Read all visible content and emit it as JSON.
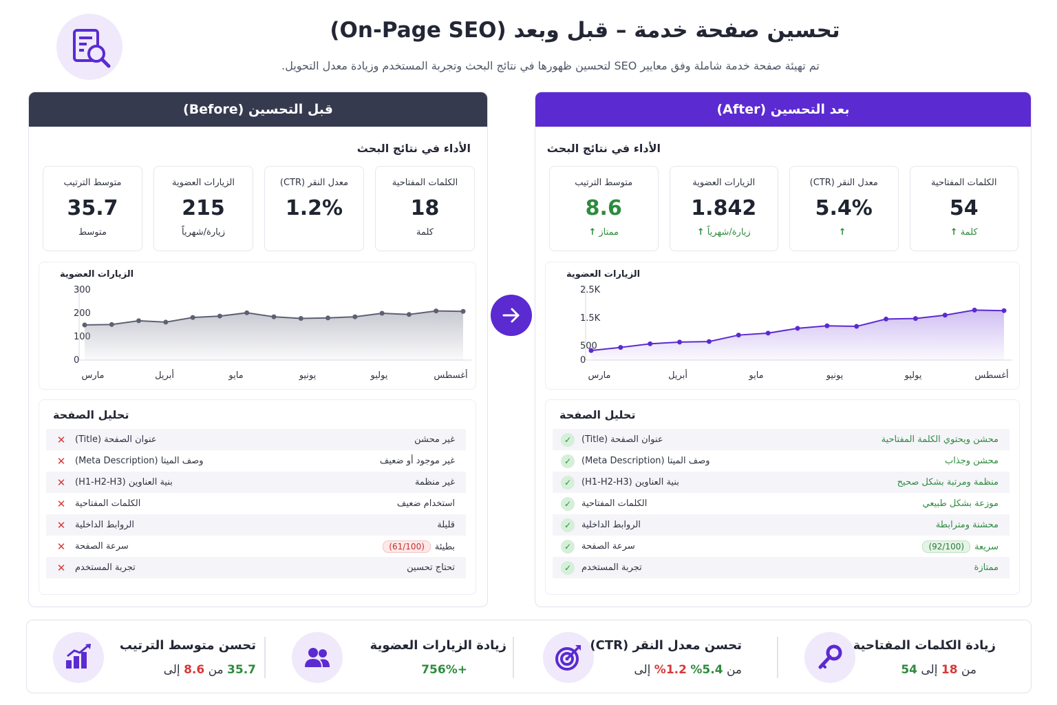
{
  "header": {
    "title": "تحسين صفحة خدمة – قبل وبعد (On-Page SEO)",
    "subtitle": "تم تهيئة صفحة خدمة شاملة وفق معايير SEO لتحسين ظهورها في نتائج البحث وتجربة المستخدم وزيادة معدل التحويل."
  },
  "before": {
    "title": "قبل التحسين (Before)",
    "section_title": "الأداء في نتائج البحث",
    "cards": [
      {
        "label": "الكلمات المفتاحية",
        "value": "18",
        "unit": "كلمة"
      },
      {
        "label": "معدل النقر (CTR)",
        "value": "1.2%",
        "unit": ""
      },
      {
        "label": "الزيارات العضوية",
        "value": "215",
        "unit": "زيارة/شهرياً"
      },
      {
        "label": "متوسط الترتيب",
        "value": "35.7",
        "unit": "متوسط"
      }
    ],
    "analysis_title": "تحليل الصفحة",
    "analysis": [
      {
        "name": "عنوان الصفحة (Title)",
        "value": "غير محشن",
        "pill": ""
      },
      {
        "name": "وصف الميتا (Meta Description)",
        "value": "غير موجود أو ضعيف",
        "pill": ""
      },
      {
        "name": "بنية العناوين (H1-H2-H3)",
        "value": "غير منظمة",
        "pill": ""
      },
      {
        "name": "الكلمات المفتاحية",
        "value": "استخدام ضعيف",
        "pill": ""
      },
      {
        "name": "الروابط الداخلية",
        "value": "قليلة",
        "pill": ""
      },
      {
        "name": "سرعة الصفحة",
        "value": "بطيئة",
        "pill": "(61/100)"
      },
      {
        "name": "تجربة المستخدم",
        "value": "تحتاج تحسين",
        "pill": ""
      }
    ],
    "status_icon": "✕"
  },
  "after": {
    "title": "بعد التحسين (After)",
    "section_title": "الأداء في نتائج البحث",
    "cards": [
      {
        "label": "الكلمات المفتاحية",
        "value": "54",
        "unit": "كلمة",
        "arrow": "↑"
      },
      {
        "label": "معدل النقر (CTR)",
        "value": "5.4%",
        "unit": "",
        "arrow": "↑"
      },
      {
        "label": "الزيارات العضوية",
        "value": "1.842",
        "unit": "زيارة/شهرياً",
        "arrow": "↑"
      },
      {
        "label": "متوسط الترتيب",
        "value": "8.6",
        "unit": "ممتاز",
        "arrow": "↑"
      }
    ],
    "analysis_title": "تحليل الصفحة",
    "analysis": [
      {
        "name": "عنوان الصفحة (Title)",
        "value": "محشن ويحتوي الكلمة المفتاحية",
        "pill": ""
      },
      {
        "name": "وصف الميتا (Meta Description)",
        "value": "محشن وجذاب",
        "pill": ""
      },
      {
        "name": "بنية العناوين (H1-H2-H3)",
        "value": "منظمة ومرتبة بشكل صحيح",
        "pill": ""
      },
      {
        "name": "الكلمات المفتاحية",
        "value": "موزعة بشكل طبيعي",
        "pill": ""
      },
      {
        "name": "الروابط الداخلية",
        "value": "محشنة ومترابطة",
        "pill": ""
      },
      {
        "name": "سرعة الصفحة",
        "value": "سريعة",
        "pill": "(92/100)"
      },
      {
        "name": "تجربة المستخدم",
        "value": "ممتازة",
        "pill": ""
      }
    ],
    "status_icon": "✓"
  },
  "summary": [
    {
      "title": "زيادة الكلمات المفتاحية",
      "pre": "من",
      "from": "18",
      "mid": "إلى",
      "to": "54",
      "icon": "key-icon"
    },
    {
      "title": "تحسن معدل النقر (CTR)",
      "pre": "من",
      "from": "1.2%",
      "mid": "إلى",
      "to": "5.4%",
      "icon": "target-icon"
    },
    {
      "title": "زيادة الزيارات العضوية",
      "pre": "",
      "from": "",
      "mid": "",
      "to": "+756%",
      "icon": "users-icon"
    },
    {
      "title": "تحسن متوسط الترتيب",
      "pre": "من",
      "from": "35.7",
      "mid": "إلى",
      "to": "8.6",
      "icon": "bar-chart-icon"
    }
  ],
  "colors": {
    "before_head": "#363a4f",
    "after_accent": "#5b2ad1",
    "good": "#2e8b3e",
    "bad": "#d93838"
  },
  "chart_data": [
    {
      "type": "area",
      "title": "الزيارات العضوية",
      "x_tick_labels": [
        "مارس",
        "أبريل",
        "مايو",
        "يونيو",
        "يوليو",
        "أغسطس"
      ],
      "y_ticks": [
        "0",
        "100",
        "200",
        "300"
      ],
      "ylim": [
        0,
        300
      ],
      "values": [
        150,
        152,
        168,
        162,
        182,
        188,
        202,
        185,
        178,
        180,
        185,
        200,
        195,
        210,
        208
      ],
      "grid": false
    },
    {
      "type": "area",
      "title": "الزيارات العضوية",
      "x_tick_labels": [
        "مارس",
        "أبريل",
        "مايو",
        "يونيو",
        "يوليو",
        "أغسطس"
      ],
      "y_ticks": [
        "0",
        "500",
        "1.5K",
        "2.5K"
      ],
      "ylim": [
        0,
        2500
      ],
      "y_tick_values": [
        0,
        500,
        1500,
        2500
      ],
      "values": [
        340,
        450,
        580,
        640,
        660,
        890,
        960,
        1130,
        1220,
        1200,
        1460,
        1480,
        1600,
        1780,
        1760
      ],
      "grid": false
    }
  ]
}
